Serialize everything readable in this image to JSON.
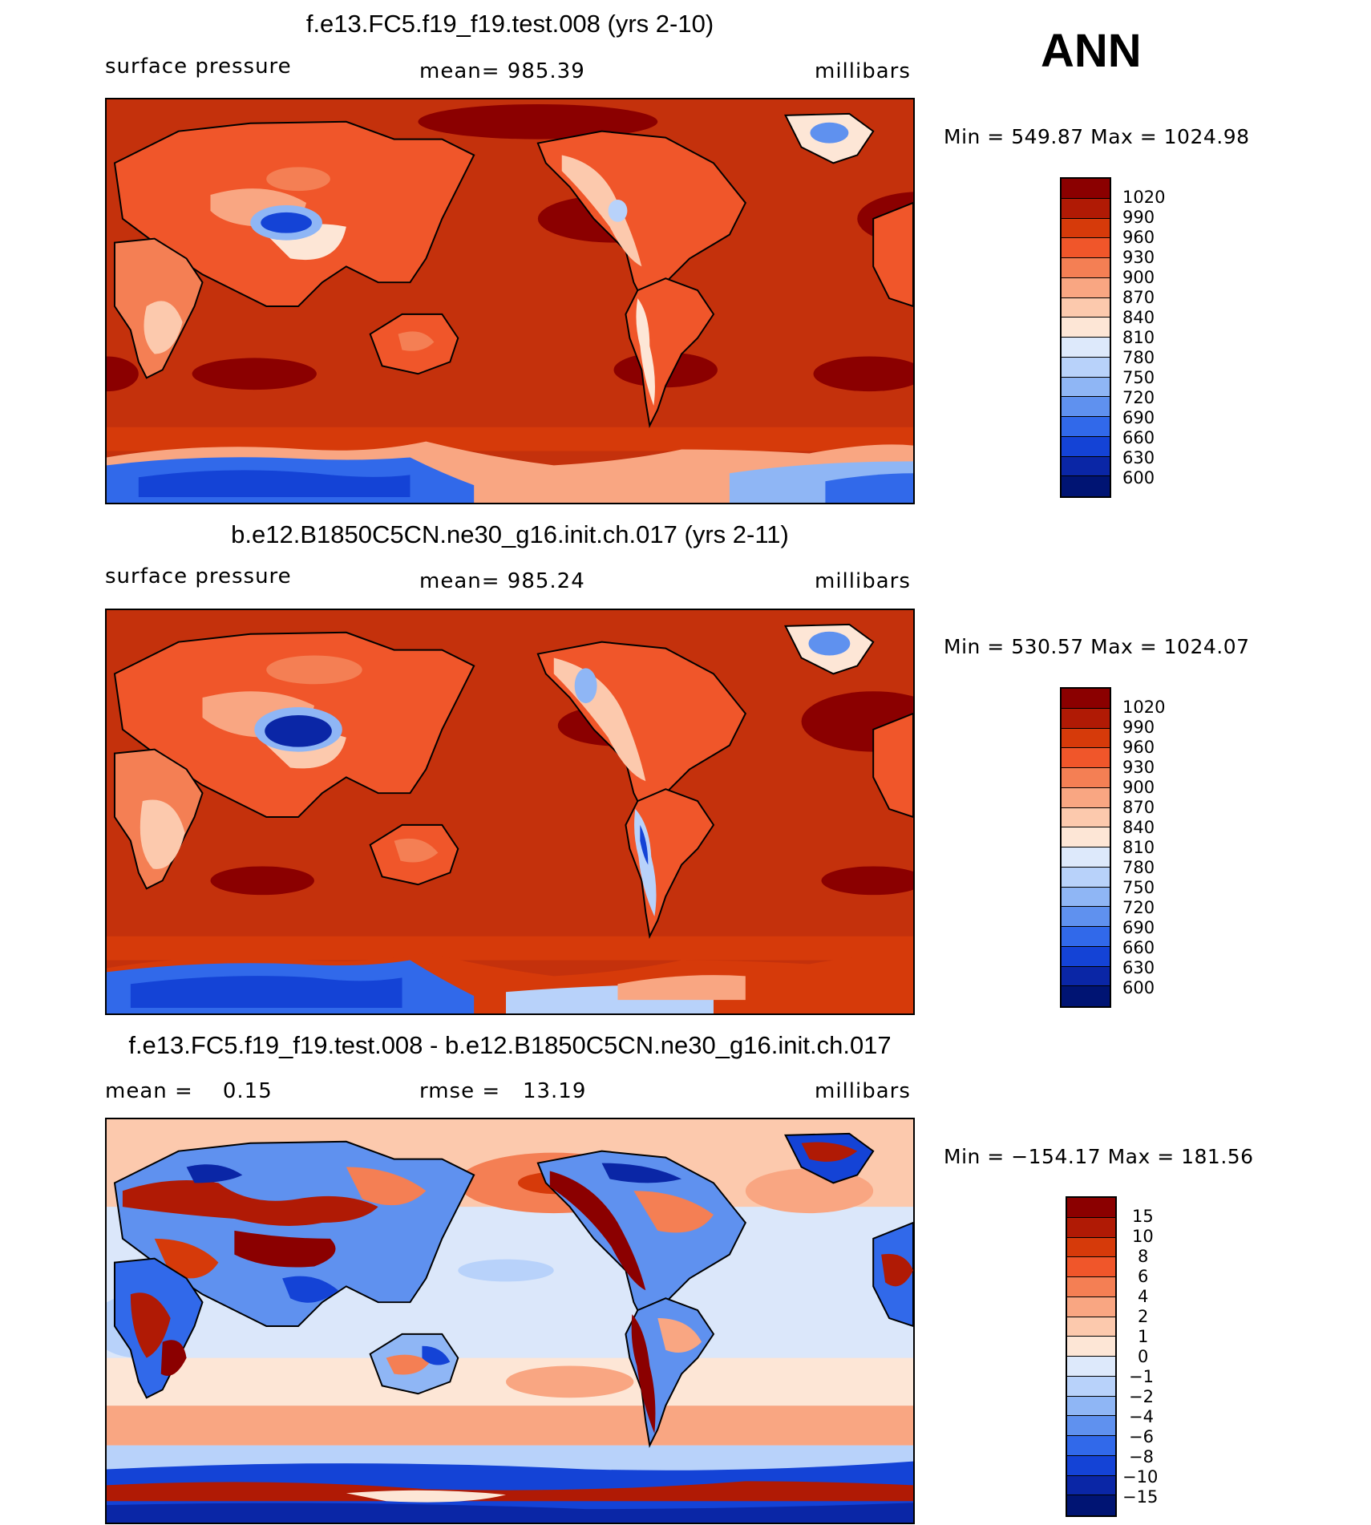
{
  "season": "ANN",
  "panels": [
    {
      "title": "f.e13.FC5.f19_f19.test.008 (yrs 2-10)",
      "sub_left": "surface pressure",
      "sub_mid": "mean= 985.39",
      "sub_right": "millibars",
      "minmax": "Min = 549.87 Max = 1024.98",
      "legend_labels": [
        "1020",
        "990",
        "960",
        "930",
        "900",
        "870",
        "840",
        "810",
        "780",
        "750",
        "720",
        "690",
        "660",
        "630",
        "600"
      ]
    },
    {
      "title": "b.e12.B1850C5CN.ne30_g16.init.ch.017 (yrs 2-11)",
      "sub_left": "surface pressure",
      "sub_mid": "mean= 985.24",
      "sub_right": "millibars",
      "minmax": "Min = 530.57 Max = 1024.07",
      "legend_labels": [
        "1020",
        "990",
        "960",
        "930",
        "900",
        "870",
        "840",
        "810",
        "780",
        "750",
        "720",
        "690",
        "660",
        "630",
        "600"
      ]
    },
    {
      "title": "f.e13.FC5.f19_f19.test.008 - b.e12.B1850C5CN.ne30_g16.init.ch.017",
      "sub_left": "mean =    0.15",
      "sub_mid": "rmse =   13.19",
      "sub_right": "millibars",
      "minmax": "Min = −154.17 Max = 181.56",
      "legend_labels": [
        "15",
        "10",
        "8",
        "6",
        "4",
        "2",
        "1",
        "0",
        "−1",
        "−2",
        "−4",
        "−6",
        "−8",
        "−10",
        "−15"
      ]
    }
  ],
  "colors": {
    "abs_scale": [
      "#8b0000",
      "#b01a05",
      "#d63a0a",
      "#f0562a",
      "#f47f54",
      "#f9a682",
      "#fcc9ad",
      "#fde6d6",
      "#dde9fb",
      "#b8d2fa",
      "#8fb6f5",
      "#5f91ef",
      "#3169ea",
      "#1443d6",
      "#0a26a6",
      "#001473"
    ],
    "diff_scale": [
      "#8b0000",
      "#b01a05",
      "#d63a0a",
      "#f0562a",
      "#f47f54",
      "#f9a682",
      "#fcc9ad",
      "#fde6d6",
      "#dde9fb",
      "#b8d2fa",
      "#8fb6f5",
      "#5f91ef",
      "#3169ea",
      "#1443d6",
      "#0a26a6",
      "#001473"
    ],
    "ocean_abs": "#c4310c",
    "ocean_diff": "#dbe7fa"
  }
}
